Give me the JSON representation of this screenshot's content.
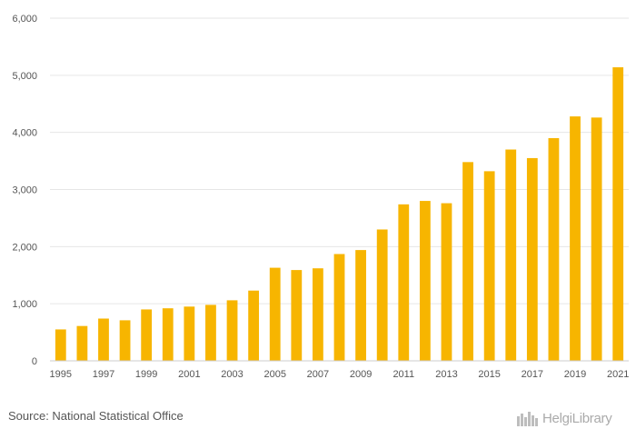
{
  "chart_data": {
    "type": "bar",
    "title": "",
    "xlabel": "",
    "ylabel": "",
    "ylim": [
      0,
      6000
    ],
    "yticks": [
      0,
      1000,
      2000,
      3000,
      4000,
      5000,
      6000
    ],
    "ytick_labels": [
      "0",
      "1,000",
      "2,000",
      "3,000",
      "4,000",
      "5,000",
      "6,000"
    ],
    "categories": [
      "1995",
      "1996",
      "1997",
      "1998",
      "1999",
      "2000",
      "2001",
      "2002",
      "2003",
      "2004",
      "2005",
      "2006",
      "2007",
      "2008",
      "2009",
      "2010",
      "2011",
      "2012",
      "2013",
      "2014",
      "2015",
      "2016",
      "2017",
      "2018",
      "2019",
      "2020",
      "2021"
    ],
    "xtick_labels": [
      "1995",
      "1997",
      "1999",
      "2001",
      "2003",
      "2005",
      "2007",
      "2009",
      "2011",
      "2013",
      "2015",
      "2017",
      "2019",
      "2021"
    ],
    "values": [
      550,
      610,
      740,
      710,
      900,
      920,
      950,
      980,
      1060,
      1230,
      1630,
      1590,
      1620,
      1870,
      1940,
      2300,
      2740,
      2800,
      2760,
      3480,
      3320,
      3700,
      3550,
      3900,
      4280,
      4260,
      5140
    ],
    "bar_color": "#f7b500",
    "grid": true
  },
  "footer": {
    "source_text": "Source: National Statistical Office",
    "logo_text": "HelgiLibrary"
  }
}
